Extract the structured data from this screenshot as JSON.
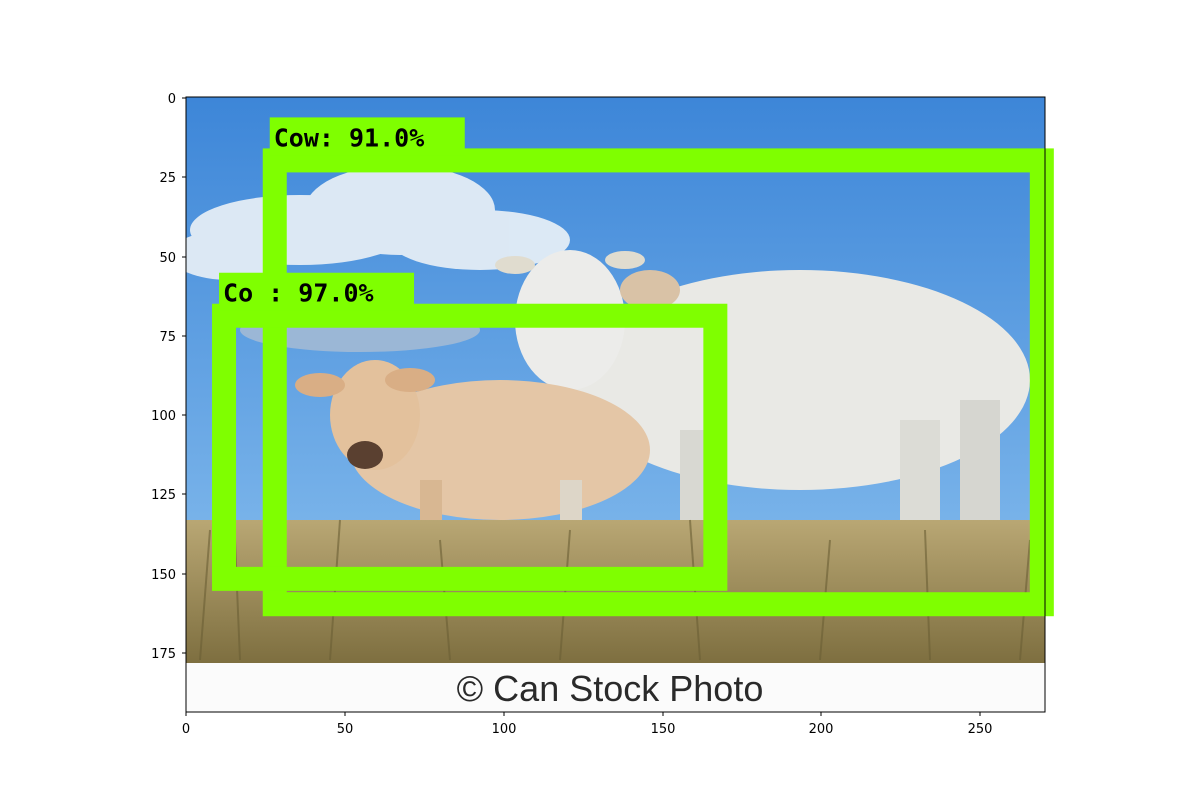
{
  "plot": {
    "x_ticks": [
      "0",
      "50",
      "100",
      "150",
      "200",
      "250"
    ],
    "y_ticks": [
      "0",
      "25",
      "50",
      "75",
      "100",
      "125",
      "150",
      "175"
    ],
    "x_range": [
      0,
      271
    ],
    "y_range": [
      0,
      194
    ],
    "box_color": "#7fff00"
  },
  "detections": [
    {
      "label": "Cow: 91.0%",
      "class": "Cow",
      "score": 91.0,
      "x0": 28,
      "y0": 20,
      "x1": 270,
      "y1": 160
    },
    {
      "label": "Co : 97.0%",
      "class": "Cow",
      "score": 97.0,
      "x0": 12,
      "y0": 69,
      "x1": 167,
      "y1": 152
    }
  ],
  "watermark": {
    "text": "© Can Stock Photo"
  },
  "scene": {
    "sky_color": "#4a8fd6",
    "grass_color": "#9b8a55",
    "subjects": [
      "white-cow",
      "tan-calf"
    ]
  }
}
